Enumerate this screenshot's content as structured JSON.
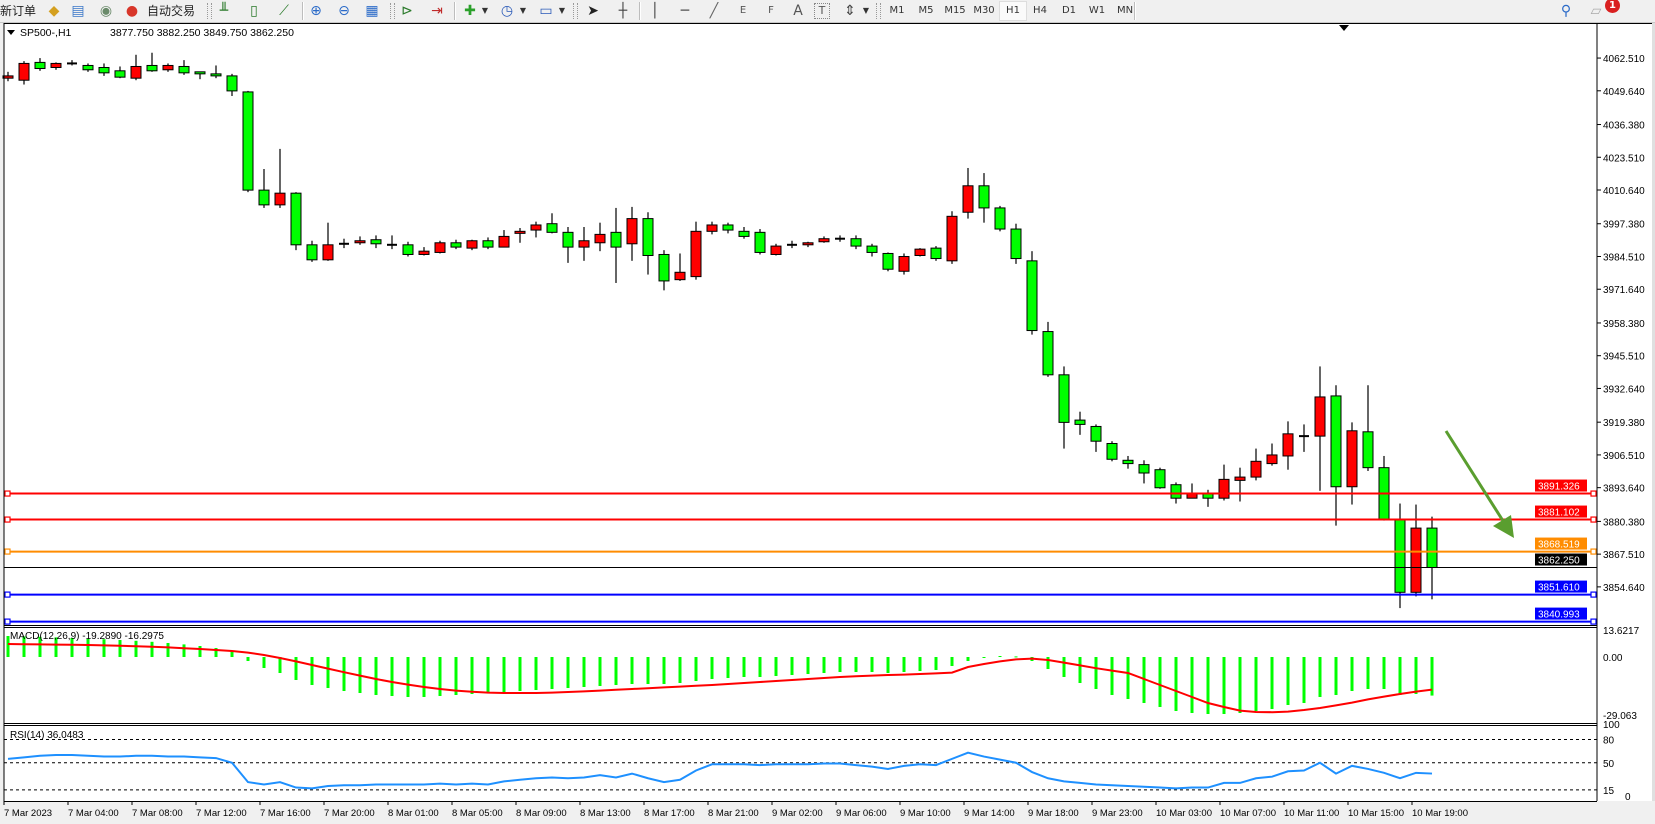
{
  "toolbar": {
    "new_order_label": "新订单",
    "autotrading_label": "自动交易",
    "icons": [
      "market-watch-icon",
      "data-window-icon",
      "signals-icon",
      "autotrading-icon",
      "bar-chart-icon",
      "candlestick-icon",
      "line-chart-icon",
      "zoom-in-icon",
      "zoom-out-icon",
      "tile-windows-icon",
      "autoscroll-icon",
      "chart-shift-icon",
      "new-chart-icon",
      "periods-clock-icon",
      "templates-icon",
      "cursor-icon",
      "crosshair-icon",
      "vertical-line-icon",
      "horizontal-line-icon",
      "trendline-icon",
      "equidistant-channel-icon",
      "fibonacci-icon",
      "text-icon",
      "text-label-icon",
      "arrows-icon",
      "search-icon",
      "chat-icon"
    ],
    "channel_letter": "E",
    "fibo_letter": "F",
    "text_letter": "A",
    "label_letter": "T",
    "timeframes": [
      "M1",
      "M5",
      "M15",
      "M30",
      "H1",
      "H4",
      "D1",
      "W1",
      "MN"
    ],
    "active_timeframe": "H1",
    "notification_count": "1"
  },
  "chart_header": {
    "symbol": "SP500-,H1",
    "ohlc": "3877.750 3882.250 3849.750 3862.250"
  },
  "chart_data": [
    {
      "type": "candlestick",
      "symbol": "SP500-",
      "timeframe": "H1",
      "bull_color": "#ff0000",
      "bear_color": "#00ff00",
      "y_ticks": [
        "4062.510",
        "4049.640",
        "4036.380",
        "4023.510",
        "4010.640",
        "3997.380",
        "3984.510",
        "3971.640",
        "3958.380",
        "3945.510",
        "3932.640",
        "3919.380",
        "3906.510",
        "3893.640",
        "3880.380",
        "3867.510",
        "3854.640"
      ],
      "x_ticks": [
        "7 Mar 2023",
        "7 Mar 04:00",
        "7 Mar 08:00",
        "7 Mar 12:00",
        "7 Mar 16:00",
        "7 Mar 20:00",
        "8 Mar 01:00",
        "8 Mar 05:00",
        "8 Mar 09:00",
        "8 Mar 13:00",
        "8 Mar 17:00",
        "8 Mar 21:00",
        "9 Mar 02:00",
        "9 Mar 06:00",
        "9 Mar 10:00",
        "9 Mar 14:00",
        "9 Mar 18:00",
        "9 Mar 23:00",
        "10 Mar 03:00",
        "10 Mar 07:00",
        "10 Mar 11:00",
        "10 Mar 15:00",
        "10 Mar 19:00"
      ],
      "ohlc": [
        [
          4054.6,
          4057.1,
          4053.4,
          4055.5
        ],
        [
          4053.8,
          4061.3,
          4052.1,
          4060.4
        ],
        [
          4060.8,
          4062.5,
          4057.5,
          4058.4
        ],
        [
          4058.8,
          4060.8,
          4057.9,
          4060.4
        ],
        [
          4060.4,
          4061.7,
          4059.6,
          4060.4
        ],
        [
          4059.6,
          4060.4,
          4057.1,
          4057.9
        ],
        [
          4058.8,
          4060.4,
          4055.5,
          4056.7
        ],
        [
          4057.5,
          4059.2,
          4054.6,
          4055.0
        ],
        [
          4054.6,
          4063.8,
          4053.8,
          4059.2
        ],
        [
          4059.6,
          4064.6,
          4057.1,
          4057.5
        ],
        [
          4057.9,
          4060.4,
          4057.1,
          4059.6
        ],
        [
          4059.2,
          4061.7,
          4055.9,
          4056.7
        ],
        [
          4057.1,
          4057.1,
          4054.2,
          4056.3
        ],
        [
          4056.3,
          4059.6,
          4054.6,
          4055.5
        ],
        [
          4055.5,
          4056.3,
          4047.6,
          4049.6
        ],
        [
          4049.2,
          4049.6,
          4009.8,
          4010.6
        ],
        [
          4010.6,
          4018.9,
          4003.6,
          4004.8
        ],
        [
          4004.8,
          4026.8,
          4003.6,
          4009.4
        ],
        [
          4009.4,
          4009.8,
          3987.0,
          3989.1
        ],
        [
          3989.1,
          3990.7,
          3982.4,
          3983.2
        ],
        [
          3983.2,
          3997.8,
          3982.8,
          3989.1
        ],
        [
          3989.5,
          3991.5,
          3987.8,
          3989.5
        ],
        [
          3989.9,
          3992.4,
          3989.1,
          3990.7
        ],
        [
          3991.1,
          3992.8,
          3987.8,
          3989.5
        ],
        [
          3989.1,
          3992.8,
          3987.4,
          3989.1
        ],
        [
          3989.1,
          3990.3,
          3984.5,
          3985.3
        ],
        [
          3985.3,
          3988.2,
          3984.9,
          3986.6
        ],
        [
          3986.1,
          3990.7,
          3985.7,
          3989.9
        ],
        [
          3989.9,
          3991.1,
          3987.4,
          3988.2
        ],
        [
          3987.8,
          3991.1,
          3987.0,
          3990.7
        ],
        [
          3990.7,
          3992.0,
          3987.4,
          3988.2
        ],
        [
          3988.2,
          3994.9,
          3988.2,
          3992.4
        ],
        [
          3993.6,
          3995.7,
          3989.9,
          3994.4
        ],
        [
          3994.9,
          3998.2,
          3992.0,
          3996.9
        ],
        [
          3997.4,
          4001.5,
          3993.6,
          3994.0
        ],
        [
          3994.0,
          3996.1,
          3982.0,
          3988.2
        ],
        [
          3988.2,
          3996.1,
          3982.8,
          3990.7
        ],
        [
          3989.9,
          3997.8,
          3986.6,
          3993.2
        ],
        [
          3994.0,
          4003.6,
          3974.1,
          3988.2
        ],
        [
          3989.5,
          4004.0,
          3982.8,
          3999.4
        ],
        [
          3999.4,
          4001.9,
          3977.4,
          3984.9
        ],
        [
          3985.3,
          3987.0,
          3971.2,
          3974.9
        ],
        [
          3975.4,
          3985.7,
          3974.9,
          3978.3
        ],
        [
          3976.6,
          3998.2,
          3975.4,
          3994.4
        ],
        [
          3994.4,
          3998.2,
          3993.2,
          3996.9
        ],
        [
          3996.9,
          3997.8,
          3993.6,
          3994.9
        ],
        [
          3994.4,
          3996.1,
          3991.5,
          3992.4
        ],
        [
          3994.0,
          3995.3,
          3985.3,
          3986.1
        ],
        [
          3985.3,
          3989.5,
          3984.9,
          3988.6
        ],
        [
          3989.1,
          3990.7,
          3987.8,
          3989.1
        ],
        [
          3989.1,
          3990.3,
          3988.2,
          3989.9
        ],
        [
          3990.3,
          3992.4,
          3989.9,
          3991.5
        ],
        [
          3991.5,
          3992.8,
          3990.3,
          3991.5
        ],
        [
          3991.5,
          3992.8,
          3987.4,
          3988.6
        ],
        [
          3988.6,
          3989.5,
          3984.5,
          3986.1
        ],
        [
          3985.7,
          3986.1,
          3978.7,
          3979.5
        ],
        [
          3978.7,
          3985.7,
          3977.4,
          3984.5
        ],
        [
          3984.9,
          3987.8,
          3984.5,
          3987.4
        ],
        [
          3987.8,
          3988.6,
          3982.8,
          3983.7
        ],
        [
          3982.8,
          4002.3,
          3981.6,
          4000.3
        ],
        [
          4001.9,
          4019.3,
          3999.4,
          4012.3
        ],
        [
          4012.3,
          4017.3,
          3997.8,
          4003.6
        ],
        [
          4003.6,
          4004.4,
          3994.4,
          3995.3
        ],
        [
          3995.3,
          3997.4,
          3981.6,
          3983.7
        ],
        [
          3982.8,
          3986.6,
          3953.8,
          3955.4
        ],
        [
          3955.0,
          3958.8,
          3937.2,
          3938.0
        ],
        [
          3938.0,
          3941.3,
          3909.0,
          3919.3
        ],
        [
          3920.2,
          3923.5,
          3914.4,
          3918.5
        ],
        [
          3917.7,
          3918.5,
          3907.7,
          3911.9
        ],
        [
          3911.0,
          3911.9,
          3904.0,
          3904.8
        ],
        [
          3904.4,
          3906.1,
          3901.1,
          3903.1
        ],
        [
          3902.7,
          3904.4,
          3895.3,
          3899.4
        ],
        [
          3900.7,
          3901.5,
          3893.2,
          3893.6
        ],
        [
          3894.8,
          3895.7,
          3887.4,
          3889.5
        ],
        [
          3889.5,
          3895.3,
          3889.5,
          3891.5
        ],
        [
          3891.5,
          3892.8,
          3886.1,
          3889.5
        ],
        [
          3889.5,
          3902.7,
          3888.6,
          3896.9
        ],
        [
          3896.5,
          3901.5,
          3888.2,
          3897.8
        ],
        [
          3897.8,
          3909.0,
          3896.5,
          3904.0
        ],
        [
          3903.1,
          3911.0,
          3902.3,
          3906.5
        ],
        [
          3906.1,
          3919.7,
          3900.7,
          3914.8
        ],
        [
          3913.9,
          3918.5,
          3907.7,
          3913.9
        ],
        [
          3913.9,
          3941.3,
          3892.4,
          3929.3
        ],
        [
          3929.7,
          3933.9,
          3878.7,
          3894.0
        ],
        [
          3894.0,
          3919.3,
          3887.0,
          3916.0
        ],
        [
          3915.6,
          3933.9,
          3900.2,
          3901.5
        ],
        [
          3901.5,
          3906.1,
          3880.7,
          3881.2
        ],
        [
          3881.2,
          3887.4,
          3846.3,
          3852.5
        ],
        [
          3852.5,
          3887.0,
          3850.9,
          3877.75
        ],
        [
          3877.75,
          3882.25,
          3849.75,
          3862.25
        ]
      ],
      "levels": [
        {
          "price": "3891.326",
          "color": "#ff0000"
        },
        {
          "price": "3881.102",
          "color": "#ff0000"
        },
        {
          "price": "3868.519",
          "color": "#ff8c00"
        },
        {
          "price": "3862.250",
          "color": "#000000"
        },
        {
          "price": "3851.610",
          "color": "#0000ff"
        },
        {
          "price": "3840.993",
          "color": "#0000ff"
        }
      ],
      "annotation_arrow_color": "#5a9e2f"
    },
    {
      "type": "bar+line",
      "label": "MACD(12,26,9) -19.2890 -16.2975",
      "y_ticks": [
        "13.6217",
        "0.00",
        "-29.063"
      ],
      "histogram_color": "#00ff00",
      "signal_color": "#ff0000",
      "macd": [
        10.5,
        10.3,
        10.1,
        9.8,
        9.5,
        9.2,
        8.9,
        8.5,
        8.1,
        7.6,
        7.0,
        6.3,
        5.5,
        4.5,
        3.0,
        -2,
        -5.5,
        -8,
        -11.5,
        -14,
        -15.5,
        -17,
        -18,
        -19,
        -19.5,
        -20,
        -20,
        -19.5,
        -19,
        -18.5,
        -18,
        -17.5,
        -17,
        -16.5,
        -16,
        -15.5,
        -15,
        -14.5,
        -14,
        -13.5,
        -13.5,
        -13.5,
        -13,
        -12,
        -11,
        -10.5,
        -10,
        -10,
        -9.5,
        -9,
        -8.5,
        -8,
        -7.5,
        -7.5,
        -7.5,
        -8,
        -7.5,
        -7,
        -6.5,
        -4.5,
        -2,
        -0.5,
        0.5,
        0.3,
        -2,
        -6,
        -10,
        -13,
        -16,
        -19,
        -21,
        -23,
        -25,
        -27,
        -28,
        -28.5,
        -28.5,
        -28,
        -27,
        -26,
        -24,
        -23,
        -20,
        -19,
        -17,
        -16,
        -16,
        -19,
        -18.5,
        -19.289
      ],
      "signal": [
        6.5,
        6.4,
        6.3,
        6.2,
        6.1,
        6.0,
        5.8,
        5.6,
        5.4,
        5.1,
        4.8,
        4.4,
        4.0,
        3.5,
        3.0,
        2.2,
        1.0,
        -0.5,
        -2.2,
        -4.0,
        -5.8,
        -7.6,
        -9.3,
        -11,
        -12.5,
        -13.8,
        -15,
        -16,
        -16.8,
        -17.4,
        -17.8,
        -18,
        -18,
        -18,
        -17.8,
        -17.5,
        -17.2,
        -16.8,
        -16.4,
        -16,
        -15.6,
        -15.2,
        -14.8,
        -14.4,
        -14,
        -13.5,
        -13,
        -12.5,
        -12,
        -11.5,
        -11,
        -10.5,
        -10,
        -9.6,
        -9.3,
        -9,
        -8.8,
        -8.5,
        -8.2,
        -7.8,
        -5,
        -3.5,
        -2.2,
        -1.2,
        -0.8,
        -1.5,
        -2.8,
        -4.2,
        -5.6,
        -6.8,
        -8,
        -11,
        -14,
        -17,
        -20,
        -23,
        -25,
        -26.8,
        -27.5,
        -27.6,
        -27.3,
        -26.5,
        -25.5,
        -24.2,
        -22.8,
        -21.2,
        -19.8,
        -18.5,
        -17.3,
        -16.2975
      ]
    },
    {
      "type": "line",
      "label": "RSI(14) 36.0483",
      "y_ticks": [
        "100",
        "80",
        "50",
        "15",
        "0"
      ],
      "levels": [
        80,
        50,
        15
      ],
      "ylim": [
        0,
        100
      ],
      "color": "#1e90ff",
      "values": [
        55,
        57,
        59,
        60,
        60,
        59,
        58,
        58,
        59,
        59,
        58,
        58,
        57,
        56,
        50,
        25,
        22,
        25,
        18,
        17,
        20,
        21,
        21,
        22,
        22,
        22,
        22,
        23,
        22,
        23,
        22,
        26,
        28,
        30,
        31,
        30,
        31,
        34,
        31,
        36,
        30,
        25,
        28,
        40,
        48,
        48,
        48,
        47,
        48,
        48,
        48,
        49,
        49,
        47,
        45,
        42,
        46,
        48,
        47,
        55,
        63,
        58,
        54,
        50,
        38,
        30,
        26,
        24,
        22,
        21,
        20,
        19,
        18,
        17,
        18,
        18,
        24,
        24,
        30,
        32,
        39,
        40,
        50,
        36,
        46,
        42,
        37,
        30,
        37,
        36.0483
      ]
    }
  ]
}
